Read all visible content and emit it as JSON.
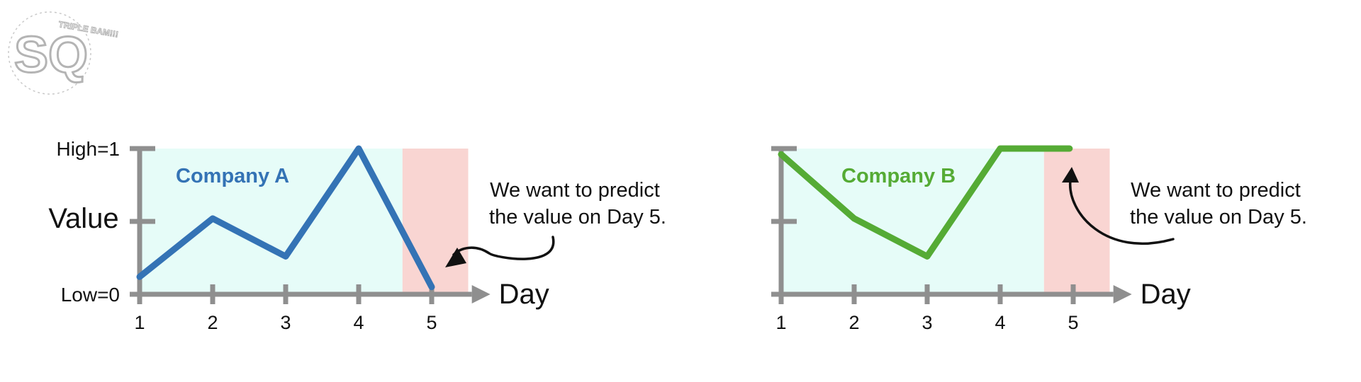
{
  "logo": {
    "text": "SQ",
    "tagline": "TRIPLE BAM!!!"
  },
  "colors": {
    "axis": "#8f8f8f",
    "known_bg": "#e6fcf8",
    "predict_bg": "#f9d5d2",
    "company_a": "#3473b5",
    "company_b": "#55ab35",
    "arrow": "#111111"
  },
  "chart_data": [
    {
      "type": "line",
      "xlabel": "Day",
      "ylabel": "Value",
      "y_ticks": [
        {
          "label": "High=1",
          "value": 1
        },
        {
          "label": "",
          "value": 0.5
        },
        {
          "label": "Low=0",
          "value": 0
        }
      ],
      "ylim": [
        0,
        1
      ],
      "categories": [
        "1",
        "2",
        "3",
        "4",
        "5"
      ],
      "x": [
        1,
        2,
        3,
        4,
        5
      ],
      "known_region": [
        1,
        4.6
      ],
      "predict_region": [
        4.6,
        5.5
      ],
      "series": [
        {
          "name": "Company A",
          "x": [
            1,
            2,
            3,
            4,
            5
          ],
          "values": [
            0.12,
            0.52,
            0.26,
            1.0,
            0.05
          ]
        }
      ],
      "annotation": "We want to predict\nthe value on Day 5."
    },
    {
      "type": "line",
      "xlabel": "Day",
      "ylabel": "",
      "y_ticks": [
        {
          "label": "",
          "value": 1
        },
        {
          "label": "",
          "value": 0.5
        },
        {
          "label": "",
          "value": 0
        }
      ],
      "ylim": [
        0,
        1
      ],
      "categories": [
        "1",
        "2",
        "3",
        "4",
        "5"
      ],
      "x": [
        1,
        2,
        3,
        4,
        5
      ],
      "known_region": [
        1,
        4.6
      ],
      "predict_region": [
        4.6,
        5.5
      ],
      "series": [
        {
          "name": "Company B",
          "x": [
            1,
            2,
            3,
            4,
            4.95
          ],
          "values": [
            0.96,
            0.52,
            0.26,
            1.0,
            1.0
          ]
        }
      ],
      "annotation": "We want to predict\nthe value on Day 5."
    }
  ]
}
